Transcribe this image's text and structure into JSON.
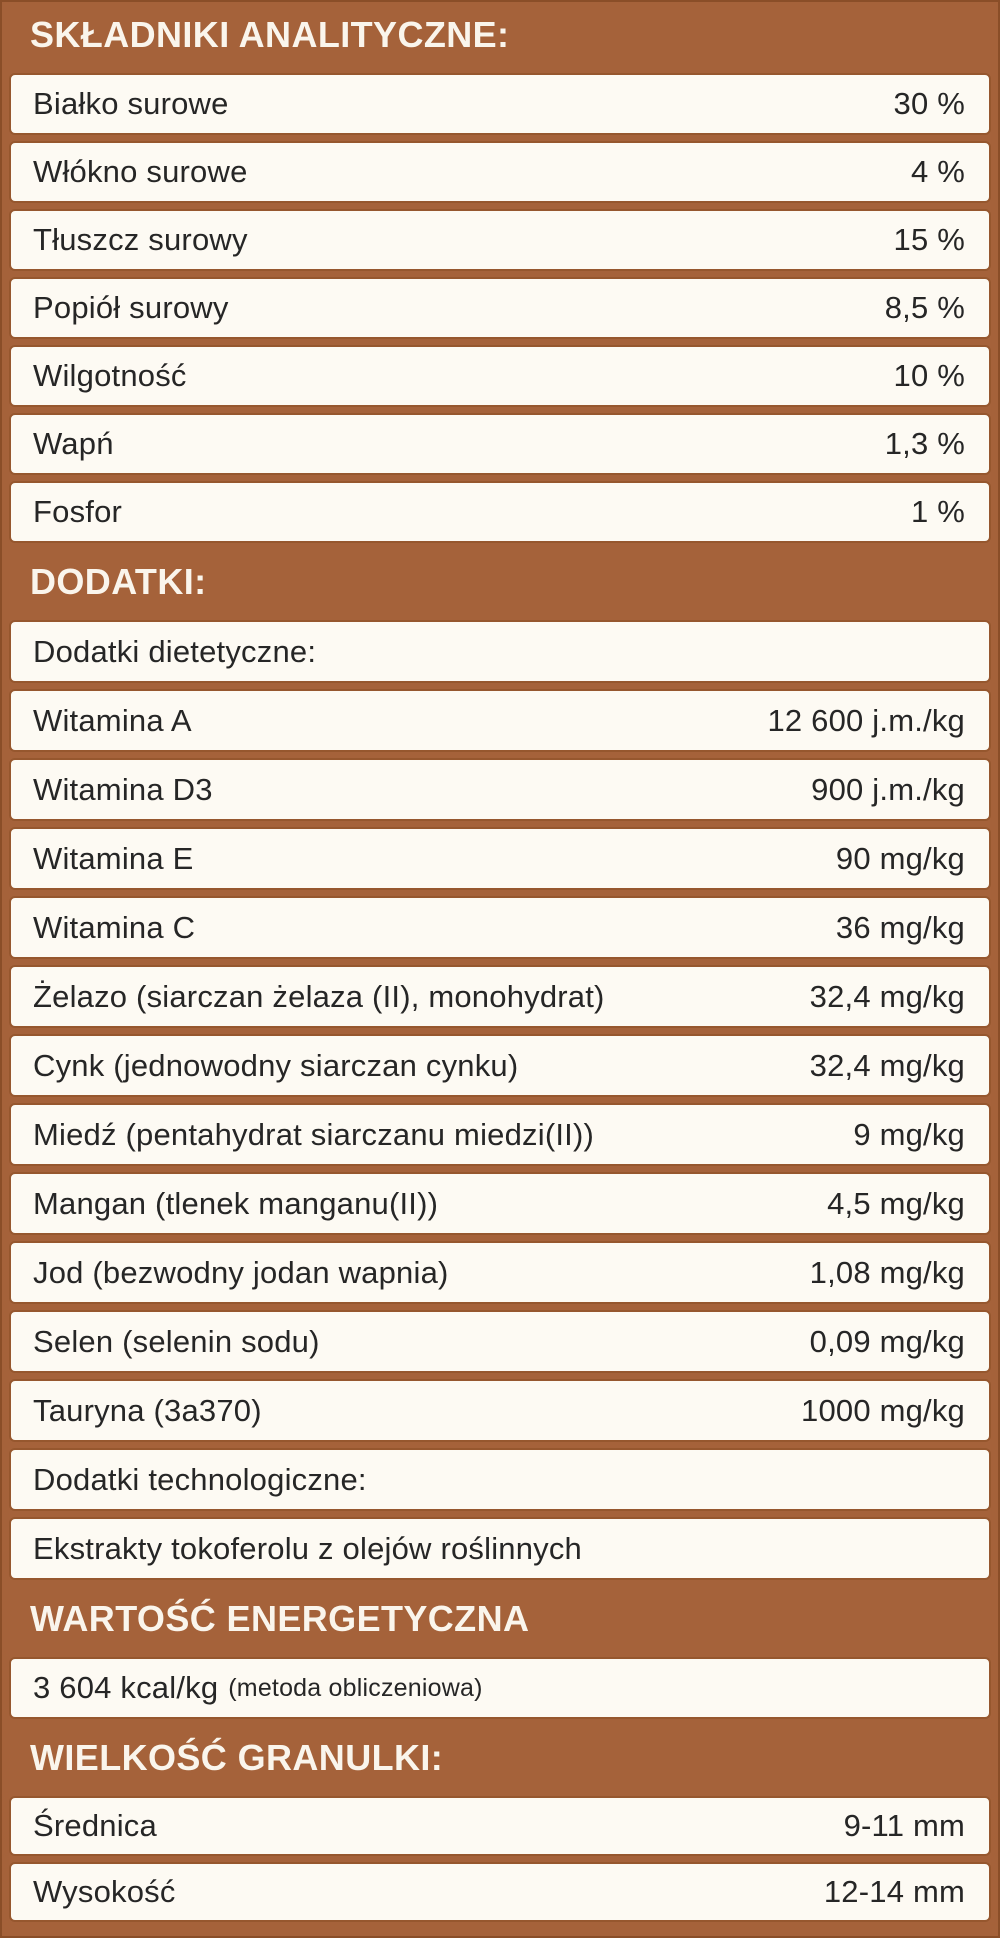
{
  "colors": {
    "background_brown": "#a5623a",
    "edge_brown": "#8a4e28",
    "row_border_brown": "#96572e",
    "row_background": "#fdfaf3",
    "header_text": "#faf5ec",
    "body_text": "#262626"
  },
  "sections": [
    {
      "header": "SKŁADNIKI ANALITYCZNE:",
      "rows": [
        {
          "label": "Białko surowe",
          "value": "30 %"
        },
        {
          "label": "Włókno surowe",
          "value": "4 %"
        },
        {
          "label": "Tłuszcz surowy",
          "value": "15 %"
        },
        {
          "label": "Popiół surowy",
          "value": "8,5 %"
        },
        {
          "label": "Wilgotność",
          "value": "10 %"
        },
        {
          "label": "Wapń",
          "value": "1,3 %"
        },
        {
          "label": "Fosfor",
          "value": "1 %"
        }
      ]
    },
    {
      "header": "DODATKI:",
      "rows": [
        {
          "label": "Dodatki dietetyczne:",
          "value": ""
        },
        {
          "label": "Witamina A",
          "value": "12 600 j.m./kg"
        },
        {
          "label": "Witamina D3",
          "value": "900 j.m./kg"
        },
        {
          "label": "Witamina E",
          "value": "90 mg/kg"
        },
        {
          "label": "Witamina C",
          "value": "36 mg/kg"
        },
        {
          "label": "Żelazo (siarczan żelaza (II), monohydrat)",
          "value": "32,4 mg/kg"
        },
        {
          "label": "Cynk (jednowodny siarczan cynku)",
          "value": "32,4 mg/kg"
        },
        {
          "label": "Miedź (pentahydrat siarczanu miedzi(II))",
          "value": "9 mg/kg"
        },
        {
          "label": "Mangan (tlenek manganu(II))",
          "value": "4,5 mg/kg"
        },
        {
          "label": "Jod (bezwodny jodan wapnia)",
          "value": "1,08 mg/kg"
        },
        {
          "label": "Selen (selenin sodu)",
          "value": "0,09 mg/kg"
        },
        {
          "label": "Tauryna (3a370)",
          "value": "1000 mg/kg"
        },
        {
          "label": "Dodatki technologiczne:",
          "value": ""
        },
        {
          "label": "Ekstrakty tokoferolu z olejów roślinnych",
          "value": ""
        }
      ]
    },
    {
      "header": "WARTOŚĆ ENERGETYCZNA",
      "rows": [
        {
          "label": "3 604 kcal/kg",
          "note": "(metoda obliczeniowa)",
          "value": ""
        }
      ]
    },
    {
      "header": "WIELKOŚĆ GRANULKI:",
      "rows": [
        {
          "label": "Średnica",
          "value": "9-11 mm"
        },
        {
          "label": "Wysokość",
          "value": "12-14 mm"
        }
      ]
    }
  ]
}
